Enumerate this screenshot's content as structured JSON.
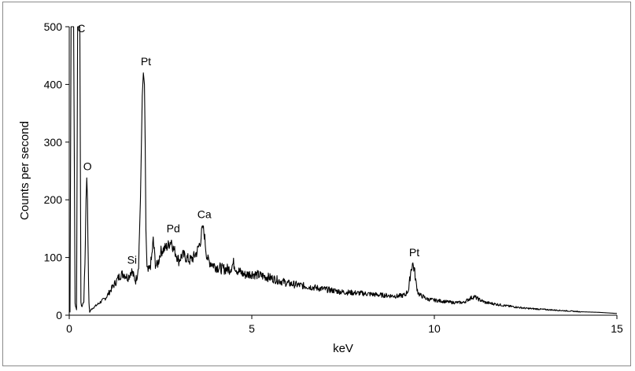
{
  "chart_data": {
    "type": "line",
    "title": "",
    "xlabel": "keV",
    "ylabel": "Counts per second",
    "xlim": [
      0,
      15
    ],
    "ylim": [
      0,
      500
    ],
    "xticks": [
      0,
      5,
      10,
      15
    ],
    "yticks": [
      0,
      100,
      200,
      300,
      400,
      500
    ],
    "grid": false,
    "series": [
      {
        "x": [
          0.02,
          0.05,
          0.08,
          0.12,
          0.16,
          0.2,
          0.23,
          0.26,
          0.29,
          0.32,
          0.35,
          0.4,
          0.43,
          0.46,
          0.48,
          0.5,
          0.52,
          0.54,
          0.56,
          0.6,
          0.7,
          0.8,
          0.9,
          1.0,
          1.1,
          1.2,
          1.3,
          1.4,
          1.5,
          1.6,
          1.65,
          1.7,
          1.75,
          1.78,
          1.82,
          1.86,
          1.9,
          1.95,
          2.0,
          2.03,
          2.06,
          2.08,
          2.1,
          2.13,
          2.16,
          2.2,
          2.25,
          2.3,
          2.33,
          2.36,
          2.4,
          2.45,
          2.5,
          2.6,
          2.7,
          2.8,
          2.85,
          2.9,
          3.0,
          3.1,
          3.2,
          3.3,
          3.4,
          3.5,
          3.6,
          3.65,
          3.7,
          3.75,
          3.8,
          3.9,
          4.0,
          4.2,
          4.4,
          4.5,
          4.6,
          4.8,
          5.0,
          5.5,
          6.0,
          6.5,
          7.0,
          7.5,
          8.0,
          8.5,
          9.0,
          9.2,
          9.3,
          9.35,
          9.4,
          9.45,
          9.5,
          9.55,
          9.6,
          9.7,
          9.8,
          10.0,
          10.5,
          10.8,
          11.0,
          11.1,
          11.2,
          11.4,
          11.6,
          12.0,
          12.5,
          13.0,
          13.5,
          14.0,
          14.5,
          15.0
        ],
        "y": [
          5,
          500,
          500,
          500,
          20,
          10,
          500,
          500,
          500,
          20,
          15,
          25,
          90,
          200,
          238,
          200,
          90,
          20,
          5,
          10,
          15,
          20,
          25,
          30,
          40,
          50,
          60,
          70,
          72,
          65,
          70,
          78,
          70,
          65,
          60,
          70,
          90,
          200,
          380,
          420,
          400,
          300,
          150,
          80,
          75,
          80,
          95,
          130,
          110,
          90,
          85,
          95,
          110,
          115,
          120,
          130,
          115,
          110,
          95,
          105,
          100,
          95,
          100,
          110,
          130,
          155,
          140,
          110,
          95,
          90,
          85,
          80,
          80,
          90,
          78,
          70,
          72,
          65,
          55,
          50,
          45,
          40,
          38,
          35,
          33,
          35,
          45,
          75,
          90,
          80,
          55,
          40,
          35,
          32,
          28,
          26,
          22,
          22,
          30,
          32,
          28,
          22,
          20,
          16,
          12,
          10,
          8,
          6,
          5,
          3
        ]
      }
    ],
    "annotations": [
      {
        "text": "C",
        "x": 0.33,
        "y": 485
      },
      {
        "text": "Pt",
        "x": 2.1,
        "y": 428
      },
      {
        "text": "O",
        "x": 0.5,
        "y": 246
      },
      {
        "text": "Pd",
        "x": 2.85,
        "y": 138
      },
      {
        "text": "Ca",
        "x": 3.7,
        "y": 163
      },
      {
        "text": "Si",
        "x": 1.72,
        "y": 84
      },
      {
        "text": "Pt",
        "x": 9.45,
        "y": 97
      }
    ]
  }
}
